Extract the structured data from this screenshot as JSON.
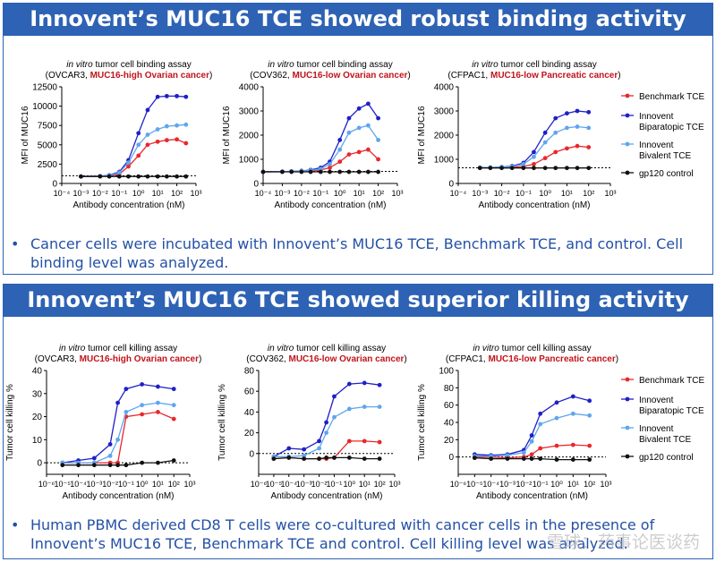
{
  "section1": {
    "title": "Innovent’s MUC16 TCE showed robust binding activity",
    "bullet": "Cancer cells were incubated with Innovent’s MUC16 TCE, Benchmark TCE, and control. Cell binding level was analyzed."
  },
  "section2": {
    "title": "Innovent’s MUC16 TCE showed superior killing activity",
    "bullet": "Human PBMC derived CD8 T cells were co-cultured with cancer cells in the presence of Innovent’s MUC16 TCE, Benchmark TCE and control. Cell killing level was analyzed."
  },
  "watermark": "雪球：药事论医谈药",
  "legend": [
    {
      "name": "Benchmark TCE",
      "color": "#e8282c"
    },
    {
      "name": "Innovent Biparatopic TCE",
      "color": "#1f1fc8"
    },
    {
      "name": "Innovent Bivalent TCE",
      "color": "#5ea6ee"
    },
    {
      "name": "gp120 control",
      "color": "#111111"
    }
  ],
  "chart_data": [
    {
      "type": "line",
      "title_prefix": "in vitro",
      "title_rest": " tumor cell binding assay",
      "subtitle_cell": "(OVCAR3, ",
      "subtitle_red": "MUC16-high Ovarian cancer",
      "subtitle_end": ")",
      "xlabel": "Antibody concentration (nM)",
      "ylabel": "MFI of MUC16",
      "xscale": "log",
      "xlim": [
        -4,
        3
      ],
      "ylim": [
        0,
        12500
      ],
      "xticks": [
        "10⁻⁴",
        "10⁻³",
        "10⁻²",
        "10⁻¹",
        "10⁰",
        "10¹",
        "10²",
        "10³"
      ],
      "yticks": [
        "0",
        "2500",
        "5000",
        "7500",
        "10000",
        "12500"
      ],
      "baseline": 1000,
      "x": [
        0.001,
        0.01,
        0.03,
        0.1,
        0.3,
        1,
        3,
        10,
        30,
        100,
        300
      ],
      "series": [
        {
          "name": "Benchmark TCE",
          "values": [
            900,
            950,
            1000,
            1200,
            2200,
            3600,
            5000,
            5400,
            5600,
            5700,
            5200
          ]
        },
        {
          "name": "Innovent Biparatopic TCE",
          "values": [
            900,
            950,
            1050,
            1500,
            3000,
            6500,
            9500,
            11200,
            11300,
            11300,
            11200
          ]
        },
        {
          "name": "Innovent Bivalent TCE",
          "values": [
            900,
            950,
            1000,
            1400,
            2700,
            5000,
            6300,
            7000,
            7400,
            7500,
            7600
          ]
        },
        {
          "name": "gp120 control",
          "values": [
            900,
            900,
            900,
            900,
            900,
            900,
            900,
            900,
            900,
            900,
            900
          ]
        }
      ]
    },
    {
      "type": "line",
      "title_prefix": "in vitro",
      "title_rest": " tumor cell binding assay",
      "subtitle_cell": "(COV362, ",
      "subtitle_red": "MUC16-low Ovarian cancer",
      "subtitle_end": ")",
      "xlabel": "Antibody concentration (nM)",
      "ylabel": "MFI of MUC16",
      "xscale": "log",
      "xlim": [
        -4,
        3
      ],
      "ylim": [
        0,
        4000
      ],
      "xticks": [
        "10⁻⁴",
        "10⁻³",
        "10⁻²",
        "10⁻¹",
        "10⁰",
        "10¹",
        "10²",
        "10³"
      ],
      "yticks": [
        "0",
        "1000",
        "2000",
        "3000",
        "4000"
      ],
      "baseline": 500,
      "x": [
        0.0001,
        0.001,
        0.003,
        0.01,
        0.03,
        0.1,
        0.3,
        1,
        3,
        10,
        30,
        100
      ],
      "series": [
        {
          "name": "Benchmark TCE",
          "values": [
            480,
            490,
            500,
            500,
            520,
            560,
            650,
            900,
            1200,
            1300,
            1400,
            1000
          ]
        },
        {
          "name": "Innovent Biparatopic TCE",
          "values": [
            480,
            490,
            500,
            520,
            560,
            650,
            900,
            1800,
            2700,
            3100,
            3300,
            2700
          ]
        },
        {
          "name": "Innovent Bivalent TCE",
          "values": [
            480,
            490,
            500,
            510,
            540,
            600,
            800,
            1400,
            2100,
            2300,
            2400,
            1800
          ]
        },
        {
          "name": "gp120 control",
          "values": [
            480,
            480,
            480,
            480,
            480,
            480,
            480,
            480,
            480,
            480,
            480,
            480
          ]
        }
      ]
    },
    {
      "type": "line",
      "title_prefix": "in vitro",
      "title_rest": " tumor cell binding assay",
      "subtitle_cell": "(CFPAC1, ",
      "subtitle_red": "MUC16-low Pancreatic cancer",
      "subtitle_end": ")",
      "xlabel": "Antibody concentration (nM)",
      "ylabel": "MFI of MUC16",
      "xscale": "log",
      "xlim": [
        -4,
        3
      ],
      "ylim": [
        0,
        4000
      ],
      "xticks": [
        "10⁻⁴",
        "10⁻³",
        "10⁻²",
        "10⁻¹",
        "10⁰",
        "10¹",
        "10²",
        "10³"
      ],
      "yticks": [
        "0",
        "1000",
        "2000",
        "3000",
        "4000"
      ],
      "baseline": 650,
      "x": [
        0.001,
        0.003,
        0.01,
        0.03,
        0.1,
        0.3,
        1,
        3,
        10,
        30,
        100
      ],
      "series": [
        {
          "name": "Benchmark TCE",
          "values": [
            650,
            650,
            660,
            680,
            700,
            800,
            1050,
            1300,
            1450,
            1550,
            1500
          ]
        },
        {
          "name": "Innovent Biparatopic TCE",
          "values": [
            650,
            660,
            680,
            720,
            850,
            1300,
            2100,
            2700,
            2900,
            3000,
            2950
          ]
        },
        {
          "name": "Innovent Bivalent TCE",
          "values": [
            650,
            660,
            670,
            700,
            800,
            1100,
            1700,
            2100,
            2300,
            2350,
            2300
          ]
        },
        {
          "name": "gp120 control",
          "values": [
            640,
            640,
            640,
            640,
            640,
            640,
            640,
            640,
            640,
            640,
            640
          ]
        }
      ]
    },
    {
      "type": "line",
      "title_prefix": "in vitro",
      "title_rest": " tumor cell killing assay",
      "subtitle_cell": "(OVCAR3, ",
      "subtitle_red": "MUC16-high Ovarian cancer",
      "subtitle_end": ")",
      "xlabel": "Antibody concentration (nM)",
      "ylabel": "Tumor cell killing %",
      "xscale": "log",
      "xlim": [
        -6,
        3
      ],
      "ylim": [
        -5,
        40
      ],
      "xticks": [
        "10⁻⁶",
        "10⁻⁵",
        "10⁻⁴",
        "10⁻³",
        "10⁻²",
        "10⁻¹",
        "10⁰",
        "10¹",
        "10²",
        "10³"
      ],
      "yticks": [
        "0",
        "10",
        "20",
        "30",
        "40"
      ],
      "baseline": 0,
      "x": [
        1e-05,
        0.0001,
        0.001,
        0.01,
        0.03,
        0.1,
        1,
        10,
        100
      ],
      "series": [
        {
          "name": "Benchmark TCE",
          "values": [
            0,
            0,
            0,
            0,
            0,
            20,
            21,
            22,
            19
          ]
        },
        {
          "name": "Innovent Biparatopic TCE",
          "values": [
            0,
            1,
            2,
            8,
            26,
            32,
            34,
            33,
            32
          ]
        },
        {
          "name": "Innovent Bivalent TCE",
          "values": [
            0,
            0,
            0,
            3,
            10,
            22,
            25,
            26,
            25
          ]
        },
        {
          "name": "gp120 control",
          "values": [
            -1,
            -1,
            -1,
            -1,
            -1,
            -1,
            0,
            0,
            1
          ]
        }
      ]
    },
    {
      "type": "line",
      "title_prefix": "in vitro",
      "title_rest": " tumor cell killing assay",
      "subtitle_cell": "(COV362, ",
      "subtitle_red": "MUC16-low Ovarian cancer",
      "subtitle_end": ")",
      "xlabel": "Antibody concentration (nM)",
      "ylabel": "Tumor cell killing %",
      "xscale": "log",
      "xlim": [
        -6,
        3
      ],
      "ylim": [
        -20,
        80
      ],
      "xticks": [
        "10⁻⁶",
        "10⁻⁵",
        "10⁻⁴",
        "10⁻³",
        "10⁻²",
        "10⁻¹",
        "10⁰",
        "10¹",
        "10²",
        "10³"
      ],
      "yticks": [
        "0",
        "20",
        "40",
        "60",
        "80"
      ],
      "baseline": 0,
      "x": [
        1e-05,
        0.0001,
        0.001,
        0.01,
        0.03,
        0.1,
        1,
        10,
        100
      ],
      "series": [
        {
          "name": "Benchmark TCE",
          "values": [
            -5,
            -4,
            -5,
            -5,
            -5,
            -4,
            12,
            12,
            11
          ]
        },
        {
          "name": "Innovent Biparatopic TCE",
          "values": [
            -3,
            5,
            4,
            12,
            30,
            55,
            67,
            68,
            66
          ]
        },
        {
          "name": "Innovent Bivalent TCE",
          "values": [
            -3,
            -3,
            -2,
            5,
            20,
            35,
            43,
            45,
            45
          ]
        },
        {
          "name": "gp120 control",
          "values": [
            -5,
            -4,
            -5,
            -5,
            -4,
            -4,
            -4,
            -5,
            -5
          ]
        }
      ]
    },
    {
      "type": "line",
      "title_prefix": "in vitro",
      "title_rest": " tumor cell killing assay",
      "subtitle_cell": "(CFPAC1, ",
      "subtitle_red": "MUC16-low Pancreatic cancer",
      "subtitle_end": ")",
      "xlabel": "Antibody concentration (nM)",
      "ylabel": "Tumor cell killing %",
      "xscale": "log",
      "xlim": [
        -6,
        3
      ],
      "ylim": [
        -20,
        100
      ],
      "xticks": [
        "10⁻⁶",
        "10⁻⁵",
        "10⁻⁴",
        "10⁻³",
        "10⁻²",
        "10⁻¹",
        "10⁰",
        "10¹",
        "10²",
        "10³"
      ],
      "yticks": [
        "0",
        "20",
        "40",
        "60",
        "80",
        "100"
      ],
      "baseline": 0,
      "x": [
        1e-05,
        0.0001,
        0.001,
        0.01,
        0.03,
        0.1,
        1,
        10,
        100
      ],
      "series": [
        {
          "name": "Benchmark TCE",
          "values": [
            0,
            0,
            -1,
            0,
            3,
            10,
            13,
            14,
            13
          ]
        },
        {
          "name": "Innovent Biparatopic TCE",
          "values": [
            3,
            2,
            3,
            8,
            25,
            50,
            63,
            70,
            65
          ]
        },
        {
          "name": "Innovent Bivalent TCE",
          "values": [
            1,
            1,
            2,
            5,
            18,
            38,
            45,
            50,
            48
          ]
        },
        {
          "name": "gp120 control",
          "values": [
            -1,
            -2,
            -2,
            -2,
            -2,
            -2,
            -3,
            -3,
            -3
          ]
        }
      ]
    }
  ]
}
